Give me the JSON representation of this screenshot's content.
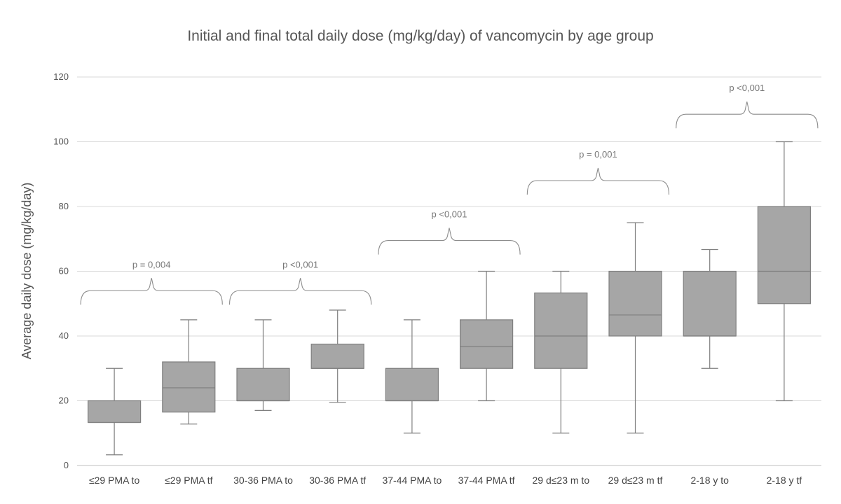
{
  "chart_data": {
    "type": "box",
    "title": "Initial and final total daily dose (mg/kg/day) of vancomycin by age group",
    "xlabel": "",
    "ylabel": "Average daily dose (mg/kg/day)",
    "ylim": [
      0,
      120
    ],
    "yticks": [
      0,
      20,
      40,
      60,
      80,
      100,
      120
    ],
    "grid": true,
    "colors": {
      "box_fill": "#a6a6a6",
      "box_stroke": "#7f7f7f",
      "grid": "#d9d9d9",
      "axis": "#bfbfbf"
    },
    "categories": [
      "≤29 PMA to",
      "≤29 PMA tf",
      "30-36 PMA to",
      "30-36 PMA tf",
      "37-44 PMA to",
      "37-44 PMA tf",
      "29 d≤23 m to",
      "29 d≤23 m tf",
      "2-18 y to",
      "2-18 y tf"
    ],
    "boxes": [
      {
        "min": 3.3,
        "q1": 13.3,
        "median": 13.3,
        "q3": 20,
        "max": 30
      },
      {
        "min": 12.8,
        "q1": 16.5,
        "median": 24,
        "q3": 32,
        "max": 45
      },
      {
        "min": 17,
        "q1": 20,
        "median": 20,
        "q3": 30,
        "max": 45
      },
      {
        "min": 19.5,
        "q1": 30,
        "median": 30,
        "q3": 37.5,
        "max": 48
      },
      {
        "min": 10,
        "q1": 20,
        "median": 20,
        "q3": 30,
        "max": 45
      },
      {
        "min": 20,
        "q1": 30,
        "median": 36.7,
        "q3": 45,
        "max": 60
      },
      {
        "min": 10,
        "q1": 30,
        "median": 40,
        "q3": 53.3,
        "max": 60
      },
      {
        "min": 10,
        "q1": 40,
        "median": 46.5,
        "q3": 60,
        "max": 75
      },
      {
        "min": 30,
        "q1": 40,
        "median": 40,
        "q3": 60,
        "max": 66.7
      },
      {
        "min": 20,
        "q1": 50,
        "median": 60,
        "q3": 80,
        "max": 100
      }
    ],
    "comparisons": [
      {
        "from": 0,
        "to": 1,
        "label": "p = 0,004",
        "level": 54
      },
      {
        "from": 2,
        "to": 3,
        "label": "p <0,001",
        "level": 54
      },
      {
        "from": 4,
        "to": 5,
        "label": "p <0,001",
        "level": 69.5
      },
      {
        "from": 6,
        "to": 7,
        "label": "p = 0,001",
        "level": 88
      },
      {
        "from": 8,
        "to": 9,
        "label": "p <0,001",
        "level": 108.5
      }
    ]
  }
}
